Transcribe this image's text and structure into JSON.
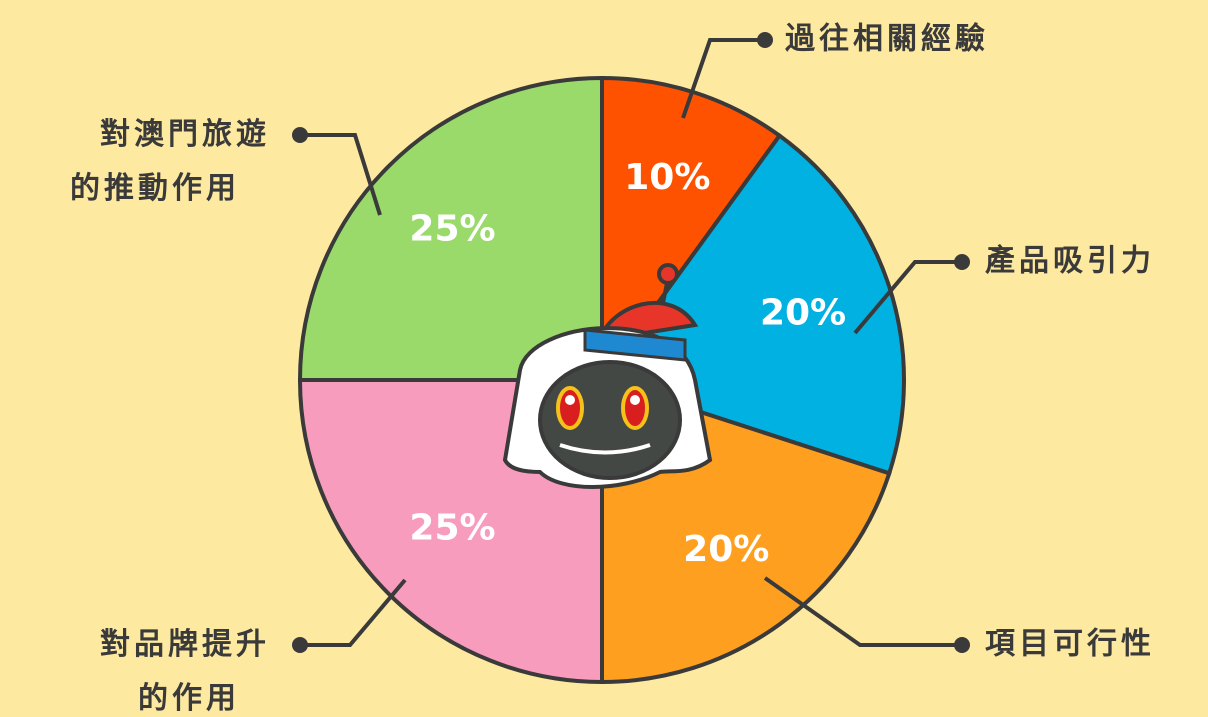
{
  "chart_data": {
    "type": "pie",
    "categories": [
      "過往相關經驗",
      "產品吸引力",
      "項目可行性",
      "對品牌提升的作用",
      "對澳門旅遊的推動作用"
    ],
    "values": [
      10,
      20,
      20,
      25,
      25
    ],
    "value_labels": [
      "10%",
      "20%",
      "20%",
      "25%",
      "25%"
    ],
    "colors": [
      "#ff5200",
      "#00b1e1",
      "#ff9f1f",
      "#f79cbc",
      "#9ada6b"
    ]
  }
}
